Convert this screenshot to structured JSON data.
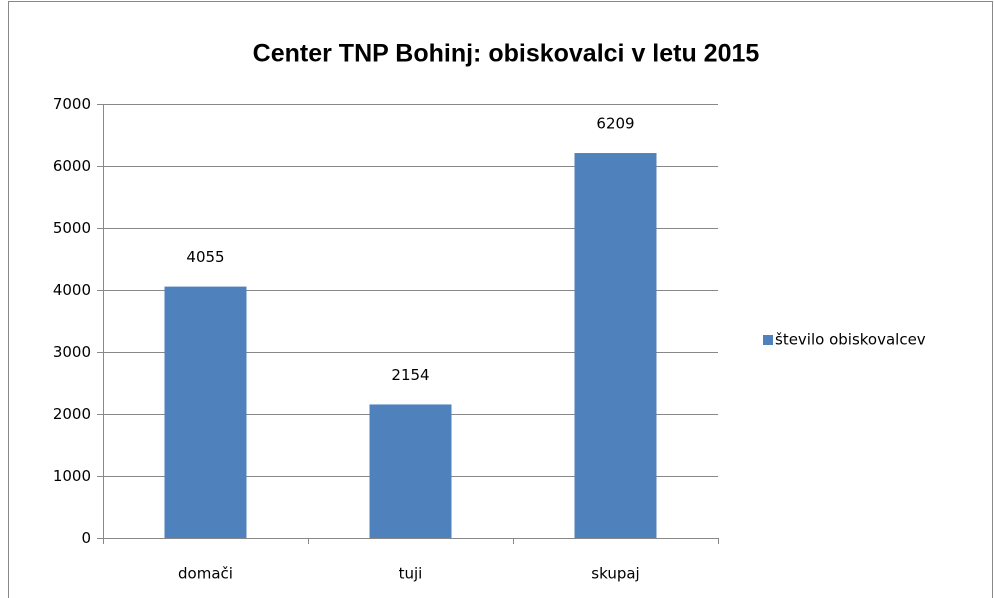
{
  "chart_data": {
    "type": "bar",
    "title": "Center TNP Bohinj: obiskovalci v letu 2015",
    "categories": [
      "domači",
      "tuji",
      "skupaj"
    ],
    "series": [
      {
        "name": "število obiskovalcev",
        "color": "#4f81bd",
        "values": [
          4055,
          2154,
          6209
        ]
      }
    ],
    "ylim": [
      0,
      7000
    ],
    "yticks": [
      0,
      1000,
      2000,
      3000,
      4000,
      5000,
      6000,
      7000
    ],
    "grid": true,
    "legend": "right"
  }
}
